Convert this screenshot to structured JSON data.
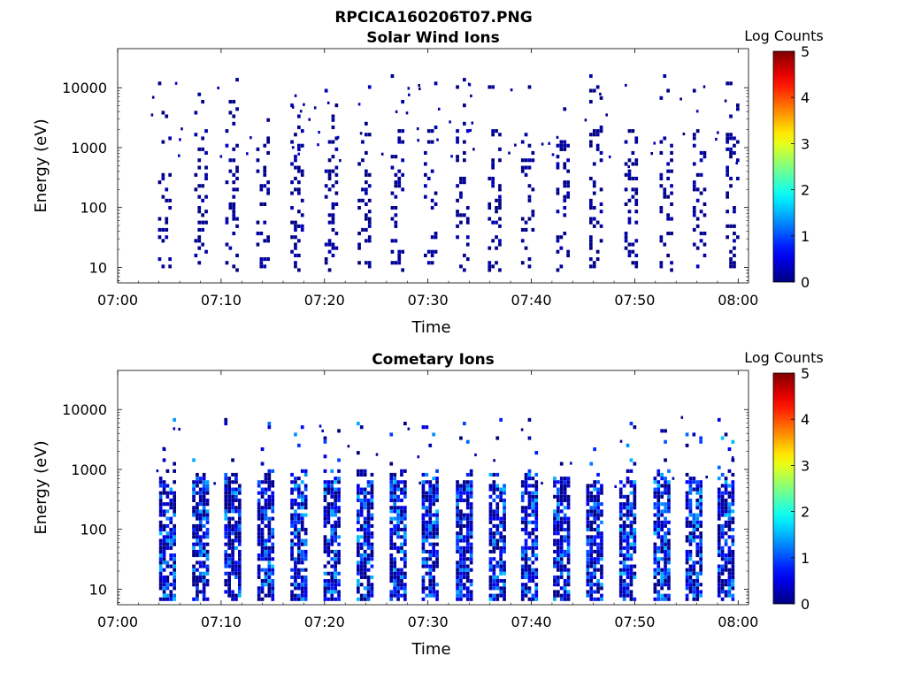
{
  "figure_title": "RPCICA160206T07.PNG",
  "chart_data": [
    {
      "type": "heatmap",
      "title": "Solar Wind Ions",
      "xlabel": "Time",
      "ylabel": "Energy (eV)",
      "y_scale": "log",
      "ylim": [
        5.5,
        45000
      ],
      "xlim": [
        "07:00",
        "08:01"
      ],
      "x_ticks": [
        "07:00",
        "07:10",
        "07:20",
        "07:30",
        "07:40",
        "07:50",
        "08:00"
      ],
      "y_ticks": [
        "10",
        "100",
        "1000",
        "10000"
      ],
      "colorbar": {
        "label": "Log Counts",
        "range": [
          0,
          5
        ],
        "ticks": [
          "0",
          "1",
          "2",
          "3",
          "4",
          "5"
        ],
        "colormap": "jet"
      },
      "bursts_minutes": [
        4.5,
        8.0,
        11.0,
        14.0,
        17.3,
        20.6,
        23.8,
        27.0,
        30.2,
        33.3,
        36.4,
        39.6,
        43.0,
        46.2,
        49.6,
        53.0,
        56.2,
        59.4
      ],
      "typical_energy_range_eV": [
        10,
        2000
      ],
      "typical_log_counts": [
        0,
        0.3
      ]
    },
    {
      "type": "heatmap",
      "title": "Cometary Ions",
      "xlabel": "Time",
      "ylabel": "Energy (eV)",
      "y_scale": "log",
      "ylim": [
        5.5,
        45000
      ],
      "xlim": [
        "07:00",
        "08:01"
      ],
      "x_ticks": [
        "07:00",
        "07:10",
        "07:20",
        "07:30",
        "07:40",
        "07:50",
        "08:00"
      ],
      "y_ticks": [
        "10",
        "100",
        "1000",
        "10000"
      ],
      "colorbar": {
        "label": "Log Counts",
        "range": [
          0,
          5
        ],
        "ticks": [
          "0",
          "1",
          "2",
          "3",
          "4",
          "5"
        ],
        "colormap": "jet"
      },
      "bursts_minutes": [
        4.7,
        7.9,
        11.0,
        14.2,
        17.4,
        20.6,
        23.8,
        27.0,
        30.1,
        33.4,
        36.6,
        39.7,
        42.8,
        46.0,
        49.2,
        52.5,
        55.6,
        58.7
      ],
      "typical_energy_range_eV": [
        7,
        1000
      ],
      "typical_log_counts": [
        0,
        1.6
      ]
    }
  ]
}
